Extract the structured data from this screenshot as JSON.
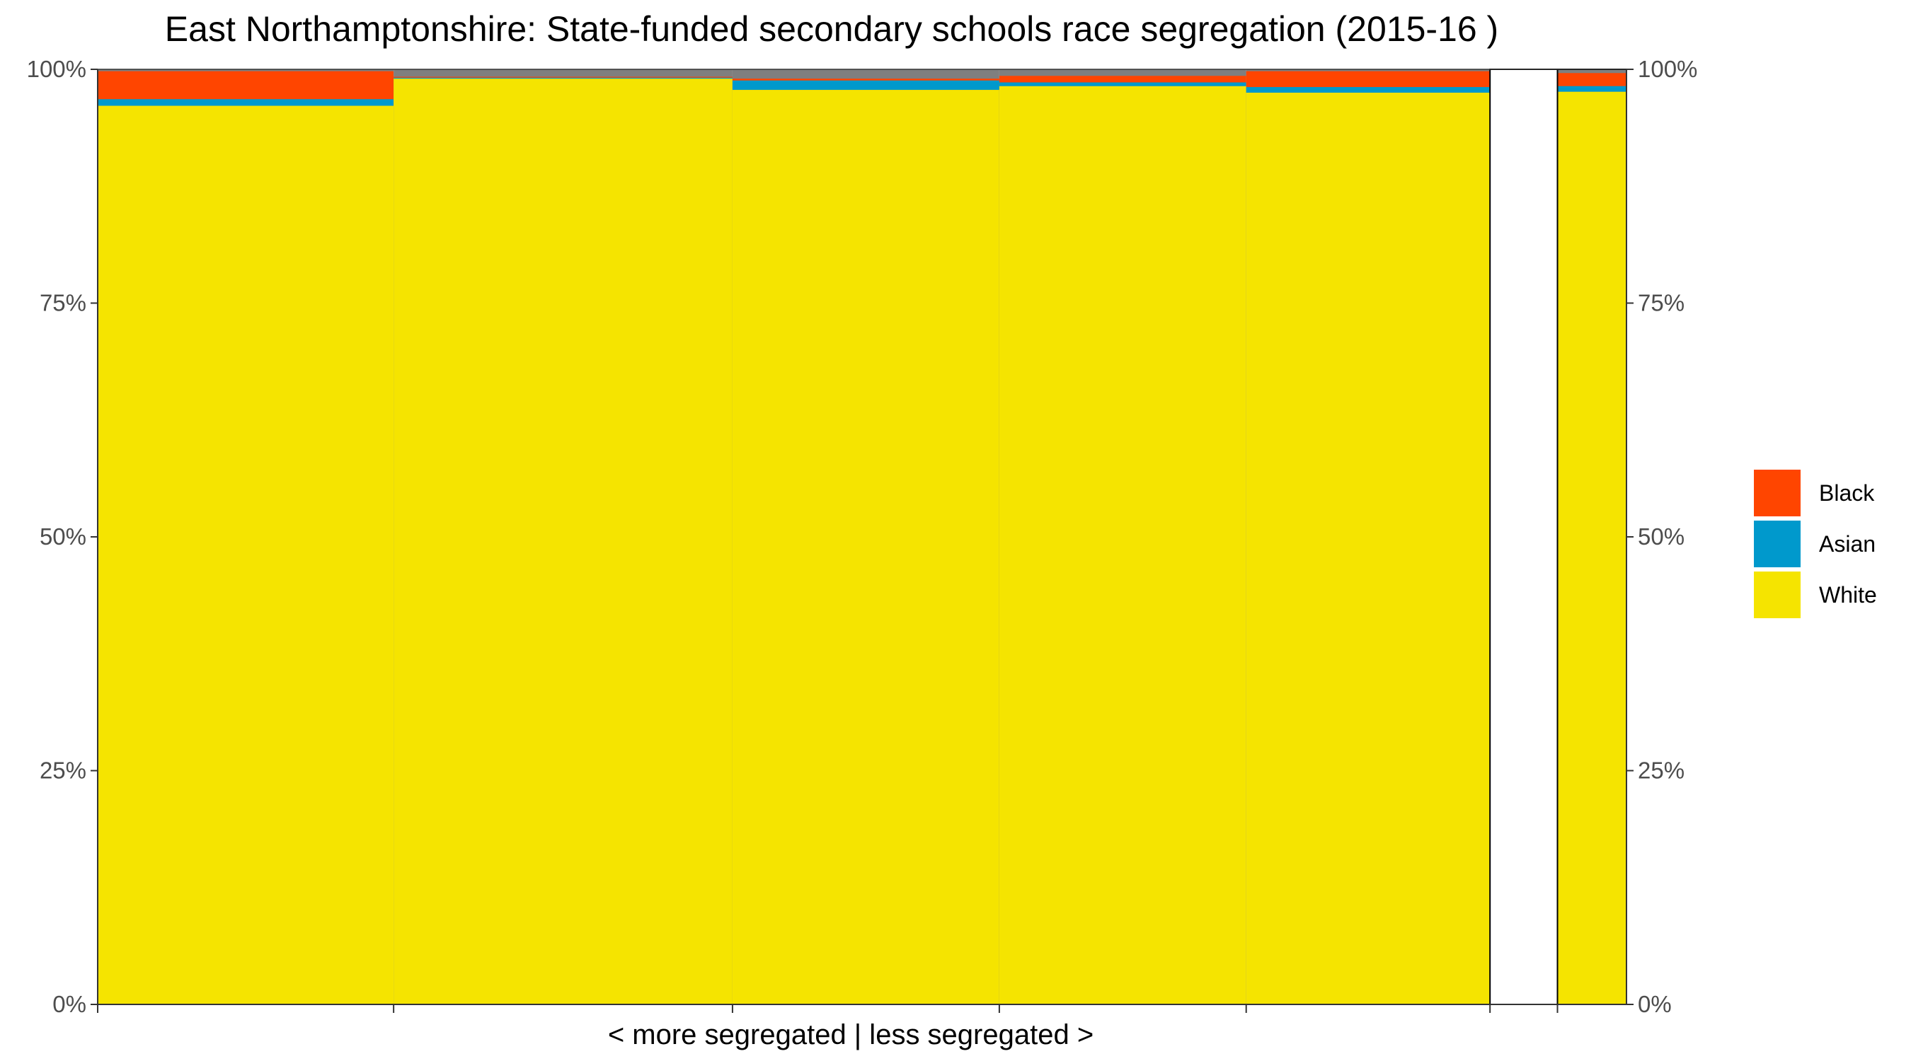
{
  "chart_data": {
    "type": "bar",
    "subtype": "stacked-100-variable-width (mosaic)",
    "title": "East Northamptonshire: State-funded secondary schools race segregation (2015-16 )",
    "xlabel": "< more segregated | less segregated >",
    "ylabel": "",
    "ylim": [
      0,
      1
    ],
    "y_ticks": [
      "0%",
      "25%",
      "50%",
      "75%",
      "100%"
    ],
    "y_axis_both_sides": true,
    "grid": false,
    "legend_position": "right",
    "series_order_bottom_to_top": [
      "White",
      "Asian",
      "Black"
    ],
    "legend": [
      {
        "name": "Black",
        "color": "#FF4500"
      },
      {
        "name": "Asian",
        "color": "#0099CC"
      },
      {
        "name": "White",
        "color": "#F5E400"
      }
    ],
    "other_color": "#7F7F7F",
    "schools": [
      {
        "share_of_pupils": 0.193,
        "white": 0.961,
        "asian": 0.007,
        "black": 0.03
      },
      {
        "share_of_pupils": 0.221,
        "white": 0.99,
        "asian": 0.001,
        "black": 0.001
      },
      {
        "share_of_pupils": 0.174,
        "white": 0.978,
        "asian": 0.01,
        "black": 0.002
      },
      {
        "share_of_pupils": 0.161,
        "white": 0.982,
        "asian": 0.004,
        "black": 0.007
      },
      {
        "share_of_pupils": 0.159,
        "white": 0.975,
        "asian": 0.006,
        "black": 0.017
      },
      {
        "share_of_pupils": 0.044,
        "white": 0.0,
        "asian": 0.0,
        "black": 0.0
      },
      {
        "share_of_pupils": 0.045,
        "white": 0.976,
        "asian": 0.006,
        "black": 0.014
      }
    ]
  }
}
